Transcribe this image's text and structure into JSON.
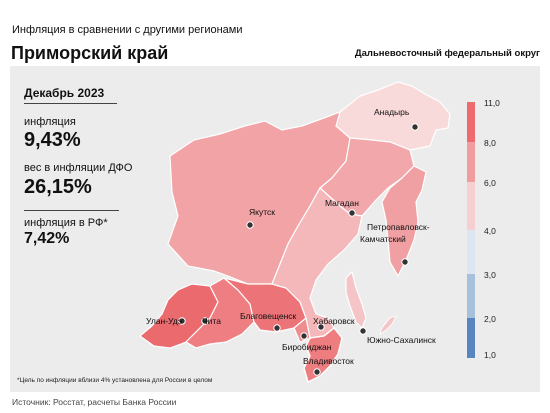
{
  "header": {
    "title": "Инфляция  в сравнении  с другими  регионами",
    "region": "Приморский край",
    "district": "Дальневосточный  федеральный  округ"
  },
  "stats": {
    "date": "Декабрь 2023",
    "inflation_label": "инфляция",
    "inflation_value": "9,43%",
    "weight_label": "вес в инфляции  ДФО",
    "weight_value": "26,15%",
    "rf_label": "инфляция  в РФ*",
    "rf_value": "7,42%"
  },
  "legend": {
    "ticks": [
      "11,0",
      "8,0",
      "6,0",
      "4,0",
      "3,0",
      "2,0",
      "1,0"
    ],
    "colors": [
      "#ed6b6f",
      "#f19c9e",
      "#f6cfd1",
      "#dde6f2",
      "#a7c1dc",
      "#5685c0"
    ]
  },
  "cities": [
    {
      "name": "Анадырь"
    },
    {
      "name": "Магадан"
    },
    {
      "name": "Якутск"
    },
    {
      "name": "Петропавловск-"
    },
    {
      "name": "Камчатский"
    },
    {
      "name": "Благовещенск"
    },
    {
      "name": "Хабаровск"
    },
    {
      "name": "Биробиджан"
    },
    {
      "name": "Южно-Сахалинск"
    },
    {
      "name": "Владивосток"
    },
    {
      "name": "Улан-Удэ"
    },
    {
      "name": "Чита"
    }
  ],
  "region_colors": {
    "chukotka": "#f9dadb",
    "yakutia": "#f2a3a5",
    "magadan": "#f2a8aa",
    "kamchatka": "#f0a0a2",
    "buryatia": "#ea6a6e",
    "zabaykalsky": "#ee7e82",
    "amur": "#ec7478",
    "khabarovsk": "#f4b8ba",
    "jewish": "#ee8c8f",
    "sakhalin": "#f4c4c6",
    "primorsky": "#ee7d80"
  },
  "footnote": "*Цель по инфляции вблизи 4% установлена для России в целом",
  "source": "Источник:  Росстат, расчеты   Банка   России"
}
